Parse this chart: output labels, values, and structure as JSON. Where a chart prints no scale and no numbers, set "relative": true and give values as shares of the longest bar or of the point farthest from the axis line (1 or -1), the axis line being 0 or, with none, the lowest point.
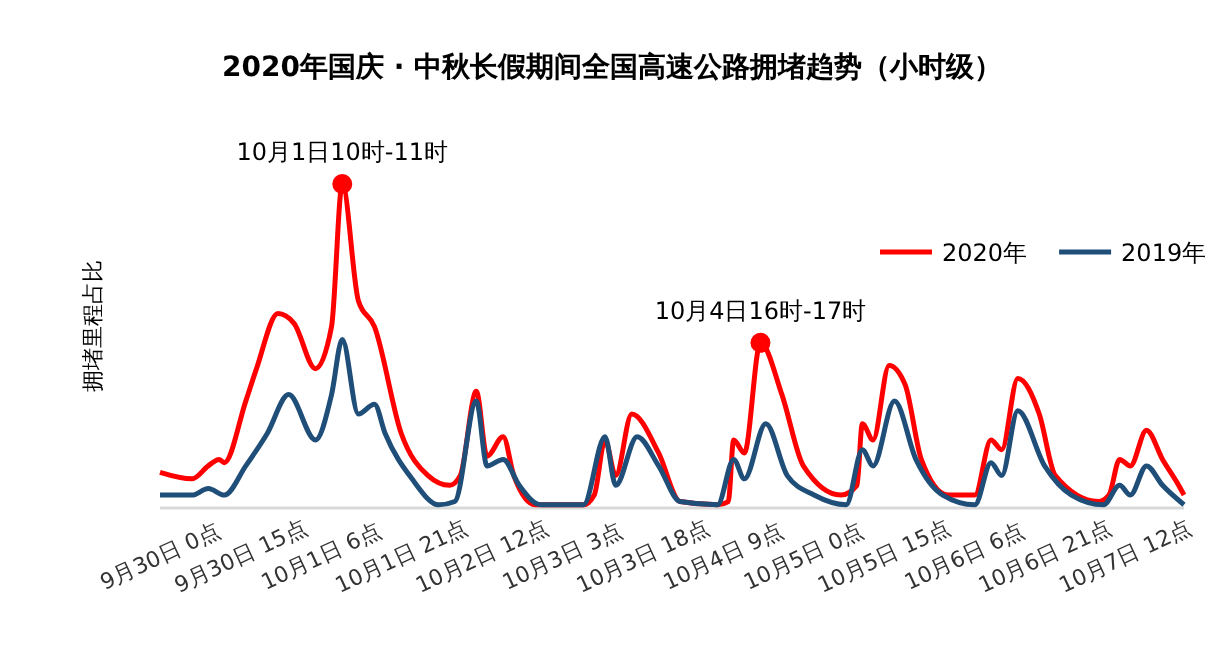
{
  "chart_data": {
    "type": "line",
    "title": "2020年国庆 · 中秋长假期间全国高速公路拥堵趋势（小时级）",
    "ylabel": "拥堵里程占比",
    "relative": true,
    "legend": "top right",
    "grid": false,
    "marker": "none",
    "line_style": "solid",
    "xlim": [
      "2020-09-30T00:00",
      "2020-10-07T23:00"
    ],
    "xticks": [
      {
        "value": "2020-09-30T00:00",
        "label": "9月30日 0点"
      },
      {
        "value": "2020-09-30T15:00",
        "label": "9月30日 15点"
      },
      {
        "value": "2020-10-01T06:00",
        "label": "10月1日 6点"
      },
      {
        "value": "2020-10-01T21:00",
        "label": "10月1日 21点"
      },
      {
        "value": "2020-10-02T12:00",
        "label": "10月2日 12点"
      },
      {
        "value": "2020-10-03T03:00",
        "label": "10月3日 3点"
      },
      {
        "value": "2020-10-03T18:00",
        "label": "10月3日 18点"
      },
      {
        "value": "2020-10-04T09:00",
        "label": "10月4日 9点"
      },
      {
        "value": "2020-10-05T00:00",
        "label": "10月5日 0点"
      },
      {
        "value": "2020-10-05T15:00",
        "label": "10月5日 15点"
      },
      {
        "value": "2020-10-06T06:00",
        "label": "10月6日 6点"
      },
      {
        "value": "2020-10-06T21:00",
        "label": "10月6日 21点"
      },
      {
        "value": "2020-10-07T12:00",
        "label": "10月7日 12点"
      }
    ],
    "series": [
      {
        "name": "2020年",
        "color": "#ff0000",
        "x": [
          "2020-09-30T00:00",
          "2020-09-30T06:00",
          "2020-09-30T09:00",
          "2020-09-30T11:00",
          "2020-09-30T12:00",
          "2020-09-30T16:00",
          "2020-09-30T18:00",
          "2020-09-30T22:00",
          "2020-10-01T01:00",
          "2020-10-01T05:00",
          "2020-10-01T08:00",
          "2020-10-01T10:00",
          "2020-10-01T13:00",
          "2020-10-01T16:00",
          "2020-10-01T21:00",
          "2020-10-02T02:00",
          "2020-10-02T06:00",
          "2020-10-02T08:00",
          "2020-10-02T11:00",
          "2020-10-02T13:00",
          "2020-10-02T16:00",
          "2020-10-02T18:00",
          "2020-10-02T22:00",
          "2020-10-03T07:00",
          "2020-10-03T09:00",
          "2020-10-03T11:00",
          "2020-10-03T13:00",
          "2020-10-03T16:00",
          "2020-10-03T21:00",
          "2020-10-04T01:00",
          "2020-10-04T08:00",
          "2020-10-04T10:00",
          "2020-10-04T11:00",
          "2020-10-04T13:00",
          "2020-10-04T16:00",
          "2020-10-04T20:00",
          "2020-10-05T00:00",
          "2020-10-05T07:00",
          "2020-10-05T10:00",
          "2020-10-05T11:00",
          "2020-10-05T13:00",
          "2020-10-05T16:00",
          "2020-10-05T19:00",
          "2020-10-05T22:00",
          "2020-10-06T03:00",
          "2020-10-06T08:00",
          "2020-10-06T11:00",
          "2020-10-06T13:00",
          "2020-10-06T16:00",
          "2020-10-06T20:00",
          "2020-10-06T23:00",
          "2020-10-07T07:00",
          "2020-10-07T09:00",
          "2020-10-07T11:00",
          "2020-10-07T13:00",
          "2020-10-07T16:00",
          "2020-10-07T19:00",
          "2020-10-07T22:00",
          "2020-10-07T23:00"
        ],
        "values": [
          0.11,
          0.09,
          0.13,
          0.15,
          0.14,
          0.33,
          0.43,
          0.6,
          0.57,
          0.43,
          0.56,
          1,
          0.64,
          0.56,
          0.23,
          0.1,
          0.07,
          0.1,
          0.36,
          0.16,
          0.22,
          0.1,
          0.01,
          0.01,
          0.04,
          0.21,
          0.1,
          0.29,
          0.17,
          0.02,
          0.01,
          0.02,
          0.21,
          0.17,
          0.51,
          0.35,
          0.13,
          0.04,
          0.07,
          0.26,
          0.21,
          0.44,
          0.38,
          0.15,
          0.04,
          0.04,
          0.21,
          0.18,
          0.4,
          0.29,
          0.1,
          0.02,
          0.04,
          0.15,
          0.13,
          0.24,
          0.15,
          0.07,
          0.04
        ]
      },
      {
        "name": "2019年",
        "color": "#1f4e79",
        "x": [
          "2020-09-30T00:00",
          "2020-09-30T06:00",
          "2020-09-30T09:00",
          "2020-09-30T12:00",
          "2020-09-30T16:00",
          "2020-09-30T20:00",
          "2020-10-01T00:00",
          "2020-10-01T05:00",
          "2020-10-01T08:00",
          "2020-10-01T10:00",
          "2020-10-01T13:00",
          "2020-10-01T16:00",
          "2020-10-01T18:00",
          "2020-10-01T23:00",
          "2020-10-02T04:00",
          "2020-10-02T07:00",
          "2020-10-02T11:00",
          "2020-10-02T13:00",
          "2020-10-02T16:00",
          "2020-10-02T19:00",
          "2020-10-02T23:00",
          "2020-10-03T07:00",
          "2020-10-03T11:00",
          "2020-10-03T13:00",
          "2020-10-03T17:00",
          "2020-10-03T21:00",
          "2020-10-04T01:00",
          "2020-10-04T08:00",
          "2020-10-04T11:00",
          "2020-10-04T13:00",
          "2020-10-04T17:00",
          "2020-10-04T21:00",
          "2020-10-05T02:00",
          "2020-10-05T08:00",
          "2020-10-05T11:00",
          "2020-10-05T13:00",
          "2020-10-05T17:00",
          "2020-10-05T21:00",
          "2020-10-06T02:00",
          "2020-10-06T08:00",
          "2020-10-06T11:00",
          "2020-10-06T13:00",
          "2020-10-06T16:00",
          "2020-10-06T21:00",
          "2020-10-07T02:00",
          "2020-10-07T08:00",
          "2020-10-07T11:00",
          "2020-10-07T13:00",
          "2020-10-07T16:00",
          "2020-10-07T19:00",
          "2020-10-07T23:00"
        ],
        "values": [
          0.04,
          0.04,
          0.06,
          0.04,
          0.13,
          0.23,
          0.35,
          0.21,
          0.35,
          0.52,
          0.29,
          0.32,
          0.23,
          0.09,
          0.01,
          0.02,
          0.33,
          0.13,
          0.15,
          0.07,
          0.01,
          0.01,
          0.22,
          0.07,
          0.22,
          0.13,
          0.02,
          0.01,
          0.15,
          0.09,
          0.26,
          0.1,
          0.04,
          0.01,
          0.18,
          0.13,
          0.33,
          0.15,
          0.04,
          0.01,
          0.14,
          0.1,
          0.3,
          0.13,
          0.04,
          0.01,
          0.07,
          0.04,
          0.13,
          0.07,
          0.01
        ]
      }
    ],
    "annotations": [
      {
        "text": "10月1日10时-11时",
        "x": "2020-10-01T10:00",
        "y": 1
      },
      {
        "text": "10月4日16时-17时",
        "x": "2020-10-04T16:00",
        "y": 0.51
      }
    ]
  }
}
